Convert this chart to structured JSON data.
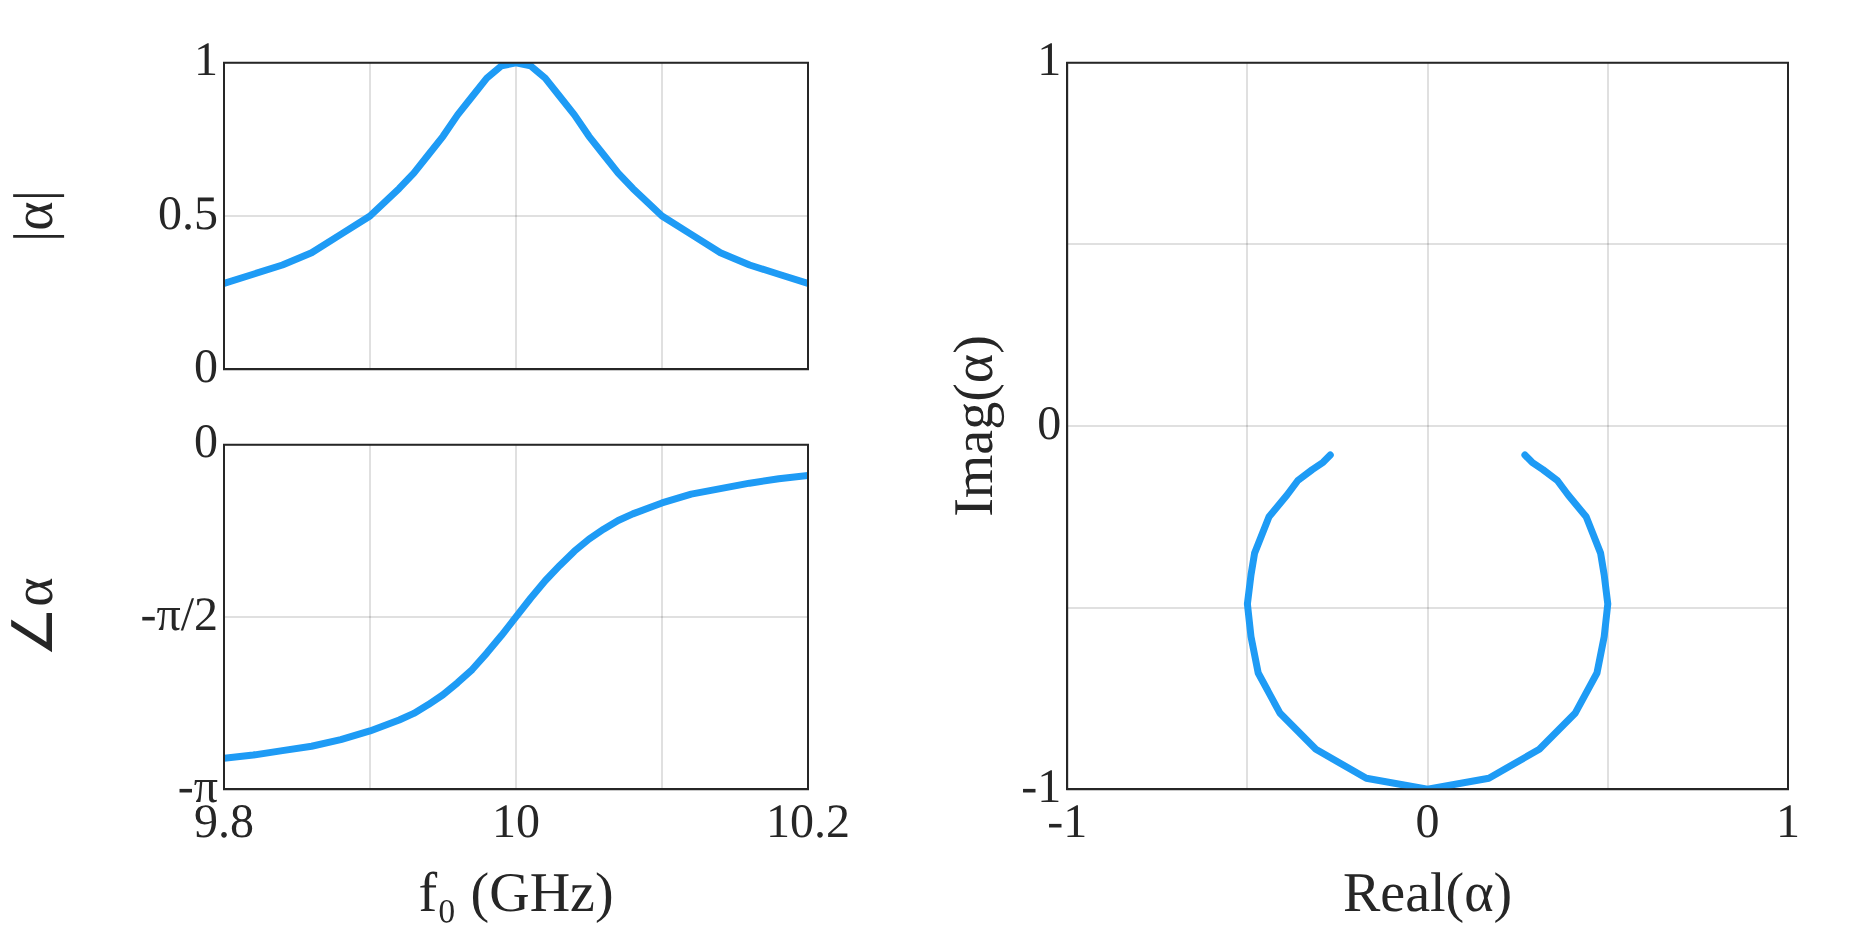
{
  "chart_data": [
    {
      "type": "line",
      "ylabel": "|α|",
      "x": [
        9.8,
        9.82,
        9.84,
        9.86,
        9.88,
        9.9,
        9.92,
        9.93,
        9.94,
        9.95,
        9.96,
        9.97,
        9.98,
        9.99,
        10,
        10.01,
        10.02,
        10.03,
        10.04,
        10.05,
        10.06,
        10.07,
        10.08,
        10.1,
        10.12,
        10.14,
        10.16,
        10.18,
        10.2
      ],
      "series": [
        {
          "color": "#1e9bf5",
          "values": [
            0.28,
            0.31,
            0.34,
            0.38,
            0.44,
            0.5,
            0.59,
            0.64,
            0.7,
            0.76,
            0.83,
            0.89,
            0.95,
            0.99,
            1,
            0.99,
            0.95,
            0.89,
            0.83,
            0.76,
            0.7,
            0.64,
            0.59,
            0.5,
            0.44,
            0.38,
            0.34,
            0.31,
            0.28
          ]
        }
      ],
      "xlim": [
        9.8,
        10.2
      ],
      "xticks": [
        9.8,
        {
          "value": 9.9,
          "label": null
        },
        10,
        {
          "value": 10.1,
          "label": null
        },
        10.2
      ],
      "ylim": [
        0,
        1
      ],
      "yticks": [
        0,
        0.5,
        1
      ],
      "tick_labels": "y",
      "grid": true,
      "legend": false,
      "marker": "none",
      "line_style": "solid"
    },
    {
      "type": "line",
      "xlabel": "f₀ (GHz)",
      "ylabel": "∠α",
      "x": [
        9.8,
        9.82,
        9.84,
        9.86,
        9.88,
        9.9,
        9.92,
        9.93,
        9.94,
        9.95,
        9.96,
        9.97,
        9.98,
        9.99,
        10,
        10.01,
        10.02,
        10.03,
        10.04,
        10.05,
        10.06,
        10.07,
        10.08,
        10.1,
        10.12,
        10.14,
        10.16,
        10.18,
        10.2
      ],
      "series": [
        {
          "color": "#1e9bf5",
          "values": [
            -2.86,
            -2.83,
            -2.79,
            -2.75,
            -2.69,
            -2.61,
            -2.51,
            -2.45,
            -2.37,
            -2.28,
            -2.17,
            -2.05,
            -1.9,
            -1.74,
            -1.57,
            -1.4,
            -1.24,
            -1.1,
            -0.97,
            -0.86,
            -0.77,
            -0.69,
            -0.63,
            -0.53,
            -0.45,
            -0.4,
            -0.35,
            -0.31,
            -0.28
          ]
        }
      ],
      "xlim": [
        9.8,
        10.2
      ],
      "xticks": [
        9.8,
        {
          "value": 9.9,
          "label": null
        },
        10,
        {
          "value": 10.1,
          "label": null
        },
        10.2
      ],
      "ylim": [
        -3.1416,
        0
      ],
      "yticks": [
        {
          "value": -3.1416,
          "label": "-π"
        },
        {
          "value": -1.5708,
          "label": "-π/2"
        },
        0
      ],
      "grid": true,
      "legend": false,
      "marker": "none",
      "line_style": "solid"
    },
    {
      "type": "line",
      "xlabel": "Real(α)",
      "ylabel": "Imag(α)",
      "series": [
        {
          "color": "#1e9bf5",
          "x": [
            -0.27,
            -0.29,
            -0.32,
            -0.36,
            -0.39,
            -0.44,
            -0.48,
            -0.49,
            -0.5,
            -0.49,
            -0.47,
            -0.41,
            -0.31,
            -0.17,
            0,
            0.17,
            0.31,
            0.41,
            0.47,
            0.49,
            0.5,
            0.49,
            0.48,
            0.44,
            0.39,
            0.36,
            0.32,
            0.29,
            0.27
          ],
          "values": [
            -0.08,
            -0.1,
            -0.12,
            -0.15,
            -0.19,
            -0.25,
            -0.35,
            -0.41,
            -0.49,
            -0.58,
            -0.68,
            -0.79,
            -0.89,
            -0.97,
            -1,
            -0.97,
            -0.89,
            -0.79,
            -0.68,
            -0.58,
            -0.49,
            -0.41,
            -0.35,
            -0.25,
            -0.19,
            -0.15,
            -0.12,
            -0.1,
            -0.08
          ]
        }
      ],
      "xlim": [
        -1,
        1
      ],
      "xticks": [
        -1,
        {
          "value": -0.5,
          "label": null
        },
        0,
        {
          "value": 0.5,
          "label": null
        },
        1
      ],
      "ylim": [
        -1,
        1
      ],
      "yticks": [
        -1,
        {
          "value": -0.5,
          "label": null
        },
        0,
        {
          "value": 0.5,
          "label": null
        },
        1
      ],
      "grid": true,
      "legend": false,
      "marker": "none",
      "line_style": "solid"
    }
  ]
}
